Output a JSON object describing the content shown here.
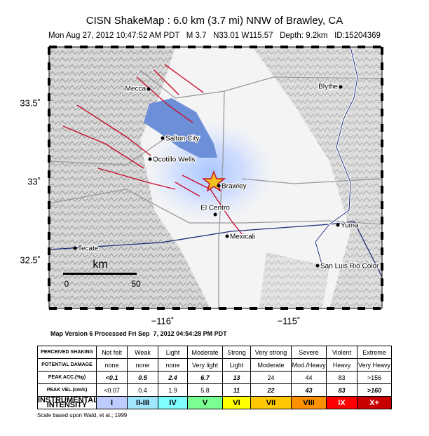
{
  "header": {
    "title": "CISN ShakeMap : 6.0 km (3.7 mi) NNW of Brawley, CA",
    "subtitle": "Mon Aug 27, 2012 10:47:52 AM PDT   M 3.7   N33.01 W115.57   Depth: 9.2km   ID:15204369"
  },
  "map": {
    "lat_labels": [
      "33.5˚",
      "33˚",
      "32.5˚"
    ],
    "lon_labels": [
      "−116˚",
      "−115˚"
    ],
    "places": [
      "Mecca",
      "Blythe",
      "Salton City",
      "Ocotillo Wells",
      "Brawley",
      "El Centro",
      "Mexicali",
      "Yuma",
      "Tecate",
      "San Luis Rio Color"
    ],
    "scale": {
      "unit": "km",
      "ticks": [
        "0",
        "50"
      ]
    }
  },
  "version_note": "Map Version 6 Processed Fri Sep  7, 2012 04:54:28 PM PDT",
  "table": {
    "rows": [
      [
        "PERCEIVED SHAKING",
        "Not felt",
        "Weak",
        "Light",
        "Moderate",
        "Strong",
        "Very strong",
        "Severe",
        "Violent",
        "Extreme"
      ],
      [
        "POTENTIAL DAMAGE",
        "none",
        "none",
        "none",
        "Very light",
        "Light",
        "Moderate",
        "Mod./Heavy",
        "Heavy",
        "Very Heavy"
      ],
      [
        "PEAK ACC.(%g)",
        "<0.1",
        "0.5",
        "2.4",
        "6.7",
        "13",
        "24",
        "44",
        "83",
        ">156"
      ],
      [
        "PEAK VEL.(cm/s)",
        "<0.07",
        "0.4",
        "1.9",
        "5.8",
        "11",
        "22",
        "43",
        "83",
        ">160"
      ],
      [
        "INSTRUMENTAL INTENSITY",
        "I",
        "II-III",
        "IV",
        "V",
        "VI",
        "VII",
        "VIII",
        "IX",
        "X+"
      ]
    ]
  },
  "footnote": "Scale based upon Wald, et al.; 1999"
}
